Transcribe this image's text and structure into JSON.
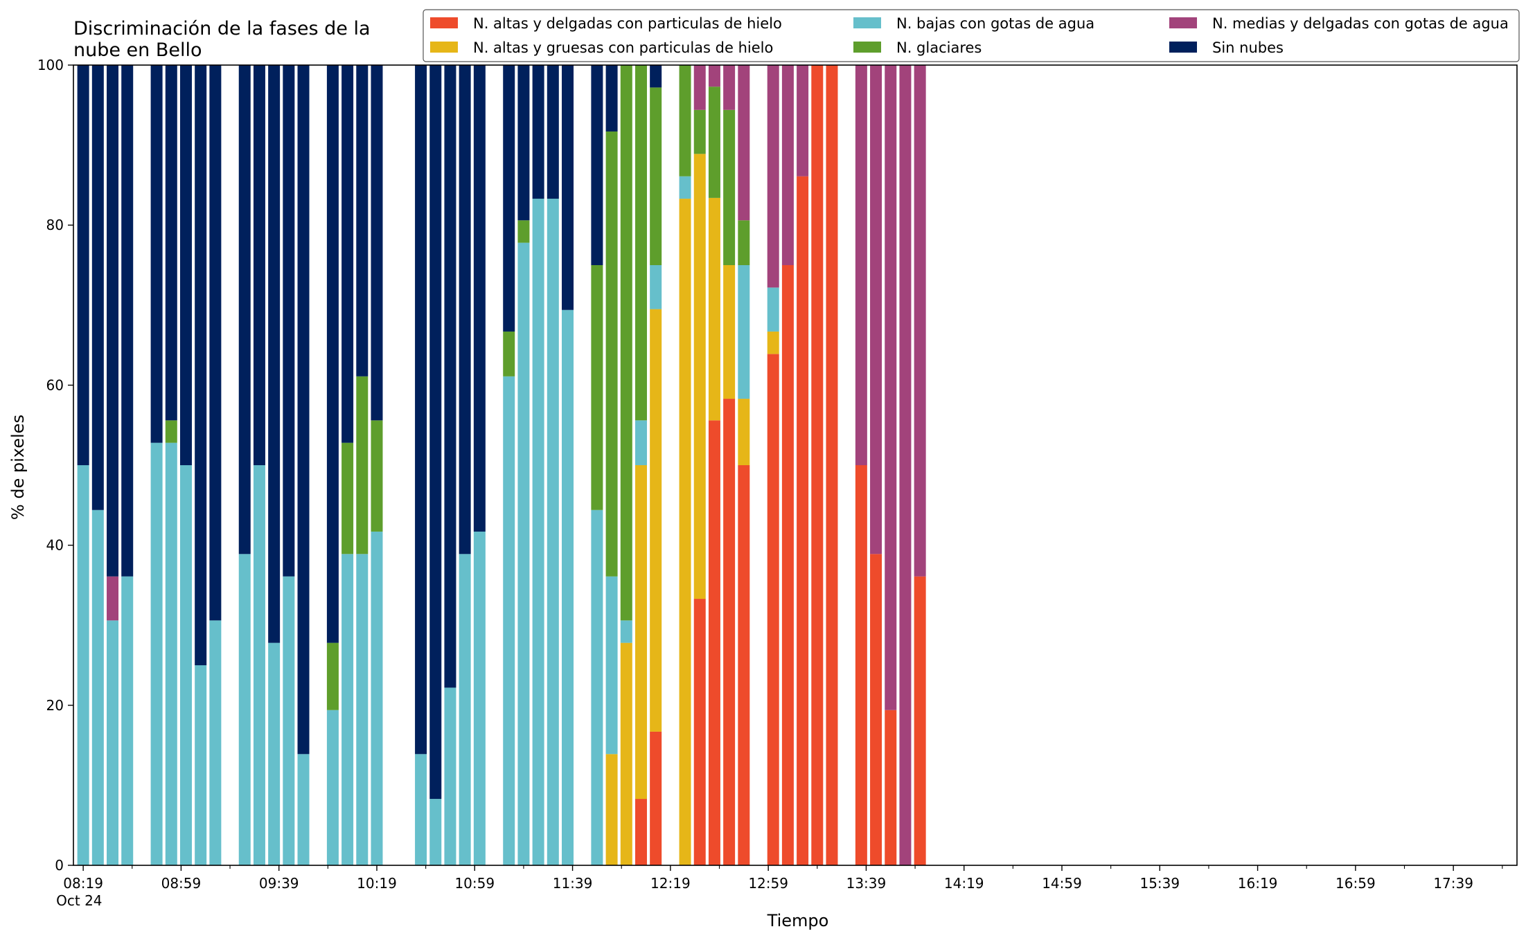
{
  "chart_data": {
    "type": "bar",
    "stacked": true,
    "title": "Discriminación de la fases de la nube en Bello",
    "xlabel": "Tiempo",
    "ylabel": "% de pixeles",
    "ylim": [
      0,
      100
    ],
    "yticks": [
      0,
      20,
      40,
      60,
      80,
      100
    ],
    "xticks": [
      {
        "time": "08:19",
        "label": "08:19",
        "sublabel": "Oct 24"
      },
      {
        "time": "08:59",
        "label": "08:59"
      },
      {
        "time": "09:39",
        "label": "09:39"
      },
      {
        "time": "10:19",
        "label": "10:19"
      },
      {
        "time": "10:59",
        "label": "10:59"
      },
      {
        "time": "11:39",
        "label": "11:39"
      },
      {
        "time": "12:19",
        "label": "12:19"
      },
      {
        "time": "12:59",
        "label": "12:59"
      },
      {
        "time": "13:39",
        "label": "13:39"
      },
      {
        "time": "14:19",
        "label": "14:19"
      },
      {
        "time": "14:59",
        "label": "14:59"
      },
      {
        "time": "15:39",
        "label": "15:39"
      },
      {
        "time": "16:19",
        "label": "16:19"
      },
      {
        "time": "16:59",
        "label": "16:59"
      },
      {
        "time": "17:39",
        "label": "17:39"
      }
    ],
    "xlim": [
      "08:15",
      "18:05"
    ],
    "grid": false,
    "legend_position": "top-right",
    "series": [
      {
        "key": "high_thin_ice",
        "name": "N. altas y delgadas con particulas de hielo",
        "color": "#EE4B2B"
      },
      {
        "key": "high_thick_ice",
        "name": "N. altas y gruesas con particulas de hielo",
        "color": "#E6B618"
      },
      {
        "key": "low_water",
        "name": "N. bajas con gotas de agua",
        "color": "#66BFCB"
      },
      {
        "key": "glacier",
        "name": "N. glaciares",
        "color": "#5E9E2C"
      },
      {
        "key": "mid_thin_water",
        "name": "N. medias y delgadas con gotas de agua",
        "color": "#A2437B"
      },
      {
        "key": "no_clouds",
        "name": "Sin nubes",
        "color": "#00205C"
      }
    ],
    "bars": [
      {
        "time": "08:19",
        "values": [
          0,
          0,
          50,
          0,
          0,
          50
        ]
      },
      {
        "time": "08:25",
        "values": [
          0,
          0,
          44.4,
          0,
          0,
          55.6
        ]
      },
      {
        "time": "08:31",
        "values": [
          0,
          0,
          30.6,
          0,
          5.5,
          63.9
        ]
      },
      {
        "time": "08:37",
        "values": [
          0,
          0,
          36.1,
          0,
          0,
          63.9
        ]
      },
      {
        "time": "08:49",
        "values": [
          0,
          0,
          52.8,
          0,
          0,
          47.2
        ]
      },
      {
        "time": "08:55",
        "values": [
          0,
          0,
          52.8,
          2.8,
          0,
          44.4
        ]
      },
      {
        "time": "09:01",
        "values": [
          0,
          0,
          50,
          0,
          0,
          50
        ]
      },
      {
        "time": "09:07",
        "values": [
          0,
          0,
          25,
          0,
          0,
          75
        ]
      },
      {
        "time": "09:13",
        "values": [
          0,
          0,
          30.6,
          0,
          0,
          69.4
        ]
      },
      {
        "time": "09:25",
        "values": [
          0,
          0,
          38.9,
          0,
          0,
          61.1
        ]
      },
      {
        "time": "09:31",
        "values": [
          0,
          0,
          50,
          0,
          0,
          50
        ]
      },
      {
        "time": "09:37",
        "values": [
          0,
          0,
          27.8,
          0,
          0,
          72.2
        ]
      },
      {
        "time": "09:43",
        "values": [
          0,
          0,
          36.1,
          0,
          0,
          63.9
        ]
      },
      {
        "time": "09:49",
        "values": [
          0,
          0,
          13.9,
          0,
          0,
          86.1
        ]
      },
      {
        "time": "10:01",
        "values": [
          0,
          0,
          19.4,
          8.4,
          0,
          72.2
        ]
      },
      {
        "time": "10:07",
        "values": [
          0,
          0,
          38.9,
          13.9,
          0,
          47.2
        ]
      },
      {
        "time": "10:13",
        "values": [
          0,
          0,
          38.9,
          22.2,
          0,
          38.9
        ]
      },
      {
        "time": "10:19",
        "values": [
          0,
          0,
          41.7,
          13.9,
          0,
          44.4
        ]
      },
      {
        "time": "10:37",
        "values": [
          0,
          0,
          13.9,
          0,
          0,
          86.1
        ]
      },
      {
        "time": "10:43",
        "values": [
          0,
          0,
          8.3,
          0,
          0,
          91.7
        ]
      },
      {
        "time": "10:49",
        "values": [
          0,
          0,
          22.2,
          0,
          0,
          77.8
        ]
      },
      {
        "time": "10:55",
        "values": [
          0,
          0,
          38.9,
          0,
          0,
          61.1
        ]
      },
      {
        "time": "11:01",
        "values": [
          0,
          0,
          41.7,
          0,
          0,
          58.3
        ]
      },
      {
        "time": "11:13",
        "values": [
          0,
          0,
          61.1,
          5.6,
          0,
          33.3
        ]
      },
      {
        "time": "11:19",
        "values": [
          0,
          0,
          77.8,
          2.8,
          0,
          19.4
        ]
      },
      {
        "time": "11:25",
        "values": [
          0,
          0,
          83.3,
          0,
          0,
          16.7
        ]
      },
      {
        "time": "11:31",
        "values": [
          0,
          0,
          83.3,
          0,
          0,
          16.7
        ]
      },
      {
        "time": "11:37",
        "values": [
          0,
          0,
          69.4,
          0,
          0,
          30.6
        ]
      },
      {
        "time": "11:49",
        "values": [
          0,
          0,
          44.4,
          30.6,
          0,
          25
        ]
      },
      {
        "time": "11:55",
        "values": [
          0,
          13.9,
          22.2,
          55.6,
          0,
          8.3
        ]
      },
      {
        "time": "12:01",
        "values": [
          0,
          27.8,
          2.8,
          69.4,
          0,
          0
        ]
      },
      {
        "time": "12:07",
        "values": [
          8.3,
          41.7,
          5.6,
          44.4,
          0,
          0
        ]
      },
      {
        "time": "12:13",
        "values": [
          16.7,
          52.8,
          5.5,
          22.2,
          0,
          2.8
        ]
      },
      {
        "time": "12:25",
        "values": [
          0,
          83.3,
          2.8,
          13.9,
          0,
          0
        ]
      },
      {
        "time": "12:31",
        "values": [
          33.3,
          55.6,
          0,
          5.5,
          5.6,
          0
        ]
      },
      {
        "time": "12:37",
        "values": [
          55.6,
          27.8,
          0,
          13.9,
          2.7,
          0
        ]
      },
      {
        "time": "12:43",
        "values": [
          58.3,
          16.7,
          0,
          19.4,
          5.6,
          0
        ]
      },
      {
        "time": "12:49",
        "values": [
          50,
          8.3,
          16.7,
          5.6,
          19.4,
          0
        ]
      },
      {
        "time": "13:01",
        "values": [
          63.9,
          2.8,
          5.5,
          0,
          27.8,
          0
        ]
      },
      {
        "time": "13:07",
        "values": [
          75,
          0,
          0,
          0,
          25,
          0
        ]
      },
      {
        "time": "13:13",
        "values": [
          86.1,
          0,
          0,
          0,
          13.9,
          0
        ]
      },
      {
        "time": "13:19",
        "values": [
          100,
          0,
          0,
          0,
          0,
          0
        ]
      },
      {
        "time": "13:25",
        "values": [
          100,
          0,
          0,
          0,
          0,
          0
        ]
      },
      {
        "time": "13:37",
        "values": [
          50,
          0,
          0,
          0,
          50,
          0
        ]
      },
      {
        "time": "13:43",
        "values": [
          38.9,
          0,
          0,
          0,
          61.1,
          0
        ]
      },
      {
        "time": "13:49",
        "values": [
          19.4,
          0,
          0,
          0,
          80.6,
          0
        ]
      },
      {
        "time": "13:55",
        "values": [
          0,
          0,
          0,
          0,
          100,
          0
        ]
      },
      {
        "time": "14:01",
        "values": [
          36.1,
          0,
          0,
          0,
          63.9,
          0
        ]
      }
    ]
  }
}
